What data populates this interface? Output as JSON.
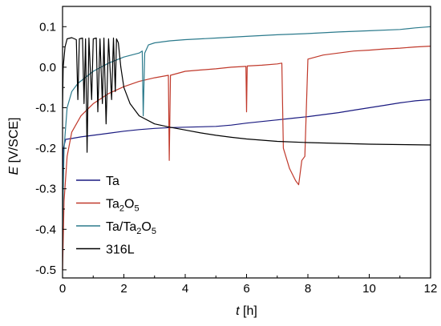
{
  "chart_data": {
    "type": "line",
    "xlabel_symbol": "t",
    "xlabel_unit": " [h]",
    "ylabel_symbol": "E",
    "ylabel_unit": " [V/SCE]",
    "xlim": [
      0,
      12
    ],
    "ylim": [
      -0.52,
      0.15
    ],
    "xticks": [
      0,
      2,
      4,
      6,
      8,
      10,
      12
    ],
    "xtick_labels": [
      "0",
      "2",
      "4",
      "6",
      "8",
      "10",
      "12"
    ],
    "yticks": [
      -0.5,
      -0.4,
      -0.3,
      -0.2,
      -0.1,
      0.0,
      0.1
    ],
    "ytick_labels": [
      "-0.5",
      "-0.4",
      "-0.3",
      "-0.2",
      "-0.1",
      "0.0",
      "0.1"
    ],
    "grid": false,
    "legend_position": "bottom-left",
    "legend": [
      {
        "series": "ta",
        "parts": [
          {
            "t": "Ta",
            "sub": false
          }
        ]
      },
      {
        "series": "ta2o5",
        "parts": [
          {
            "t": "Ta",
            "sub": false
          },
          {
            "t": "2",
            "sub": true
          },
          {
            "t": "O",
            "sub": false
          },
          {
            "t": "5",
            "sub": true
          }
        ]
      },
      {
        "series": "ta_ta2o5",
        "parts": [
          {
            "t": "Ta/Ta",
            "sub": false
          },
          {
            "t": "2",
            "sub": true
          },
          {
            "t": "O",
            "sub": false
          },
          {
            "t": "5",
            "sub": true
          }
        ]
      },
      {
        "series": "ss316l",
        "parts": [
          {
            "t": "316L",
            "sub": false
          }
        ]
      }
    ],
    "series": [
      {
        "id": "ta",
        "color": "#1a1a80",
        "points": [
          [
            0,
            -0.3
          ],
          [
            0.03,
            -0.2
          ],
          [
            0.1,
            -0.178
          ],
          [
            0.3,
            -0.176
          ],
          [
            0.6,
            -0.172
          ],
          [
            1,
            -0.168
          ],
          [
            1.5,
            -0.163
          ],
          [
            2,
            -0.158
          ],
          [
            2.5,
            -0.154
          ],
          [
            3,
            -0.151
          ],
          [
            3.5,
            -0.149
          ],
          [
            4,
            -0.148
          ],
          [
            4.5,
            -0.147
          ],
          [
            5,
            -0.146
          ],
          [
            5.5,
            -0.143
          ],
          [
            6,
            -0.138
          ],
          [
            6.5,
            -0.134
          ],
          [
            7,
            -0.13
          ],
          [
            7.5,
            -0.126
          ],
          [
            8,
            -0.122
          ],
          [
            8.5,
            -0.117
          ],
          [
            9,
            -0.112
          ],
          [
            9.5,
            -0.106
          ],
          [
            10,
            -0.1
          ],
          [
            10.5,
            -0.094
          ],
          [
            11,
            -0.088
          ],
          [
            11.5,
            -0.083
          ],
          [
            12,
            -0.08
          ]
        ]
      },
      {
        "id": "ta2o5",
        "color": "#c0392b",
        "points": [
          [
            0,
            -0.5
          ],
          [
            0.05,
            -0.33
          ],
          [
            0.15,
            -0.22
          ],
          [
            0.3,
            -0.16
          ],
          [
            0.6,
            -0.12
          ],
          [
            1,
            -0.09
          ],
          [
            1.5,
            -0.065
          ],
          [
            2,
            -0.048
          ],
          [
            2.5,
            -0.035
          ],
          [
            3,
            -0.026
          ],
          [
            3.45,
            -0.02
          ],
          [
            3.48,
            -0.23
          ],
          [
            3.52,
            -0.02
          ],
          [
            4,
            -0.01
          ],
          [
            4.5,
            -0.007
          ],
          [
            5,
            -0.004
          ],
          [
            5.5,
            0.0
          ],
          [
            5.98,
            0.002
          ],
          [
            6.0,
            -0.11
          ],
          [
            6.02,
            0.003
          ],
          [
            6.5,
            0.005
          ],
          [
            7.0,
            0.008
          ],
          [
            7.15,
            0.01
          ],
          [
            7.2,
            -0.2
          ],
          [
            7.4,
            -0.25
          ],
          [
            7.6,
            -0.28
          ],
          [
            7.7,
            -0.29
          ],
          [
            7.8,
            -0.23
          ],
          [
            7.9,
            -0.22
          ],
          [
            8.0,
            0.02
          ],
          [
            8.5,
            0.03
          ],
          [
            9,
            0.035
          ],
          [
            9.5,
            0.04
          ],
          [
            10,
            0.042
          ],
          [
            10.5,
            0.045
          ],
          [
            11,
            0.047
          ],
          [
            11.5,
            0.05
          ],
          [
            12,
            0.052
          ]
        ]
      },
      {
        "id": "ta_ta2o5",
        "color": "#2b7a8c",
        "points": [
          [
            0,
            -0.4
          ],
          [
            0.05,
            -0.2
          ],
          [
            0.15,
            -0.1
          ],
          [
            0.3,
            -0.06
          ],
          [
            0.5,
            -0.04
          ],
          [
            1,
            -0.01
          ],
          [
            1.5,
            0.01
          ],
          [
            2,
            0.025
          ],
          [
            2.5,
            0.035
          ],
          [
            2.6,
            0.04
          ],
          [
            2.63,
            -0.12
          ],
          [
            2.68,
            0.035
          ],
          [
            2.8,
            0.055
          ],
          [
            3,
            0.06
          ],
          [
            3.5,
            0.065
          ],
          [
            4,
            0.068
          ],
          [
            5,
            0.072
          ],
          [
            6,
            0.076
          ],
          [
            7,
            0.08
          ],
          [
            8,
            0.083
          ],
          [
            9,
            0.087
          ],
          [
            10,
            0.09
          ],
          [
            11,
            0.093
          ],
          [
            11.5,
            0.097
          ],
          [
            12,
            0.1
          ]
        ]
      },
      {
        "id": "ss316l",
        "color": "#000000",
        "points": [
          [
            0,
            -0.1
          ],
          [
            0.02,
            0.0
          ],
          [
            0.08,
            0.05
          ],
          [
            0.15,
            0.07
          ],
          [
            0.3,
            0.073
          ],
          [
            0.45,
            0.068
          ],
          [
            0.5,
            -0.08
          ],
          [
            0.55,
            0.07
          ],
          [
            0.65,
            0.072
          ],
          [
            0.7,
            -0.09
          ],
          [
            0.75,
            0.07
          ],
          [
            0.8,
            -0.21
          ],
          [
            0.86,
            0.072
          ],
          [
            0.95,
            -0.08
          ],
          [
            1.0,
            0.07
          ],
          [
            1.1,
            0.072
          ],
          [
            1.15,
            -0.11
          ],
          [
            1.22,
            0.07
          ],
          [
            1.3,
            -0.09
          ],
          [
            1.35,
            0.072
          ],
          [
            1.42,
            -0.14
          ],
          [
            1.5,
            0.07
          ],
          [
            1.6,
            -0.08
          ],
          [
            1.66,
            0.072
          ],
          [
            1.72,
            -0.06
          ],
          [
            1.76,
            0.07
          ],
          [
            1.82,
            0.06
          ],
          [
            1.9,
            0.0
          ],
          [
            2.0,
            -0.05
          ],
          [
            2.2,
            -0.09
          ],
          [
            2.5,
            -0.12
          ],
          [
            3.0,
            -0.14
          ],
          [
            3.5,
            -0.148
          ],
          [
            4,
            -0.155
          ],
          [
            4.5,
            -0.162
          ],
          [
            5,
            -0.168
          ],
          [
            5.5,
            -0.173
          ],
          [
            6,
            -0.177
          ],
          [
            7,
            -0.183
          ],
          [
            8,
            -0.186
          ],
          [
            9,
            -0.188
          ],
          [
            10,
            -0.19
          ],
          [
            11,
            -0.191
          ],
          [
            12,
            -0.192
          ]
        ]
      }
    ]
  }
}
